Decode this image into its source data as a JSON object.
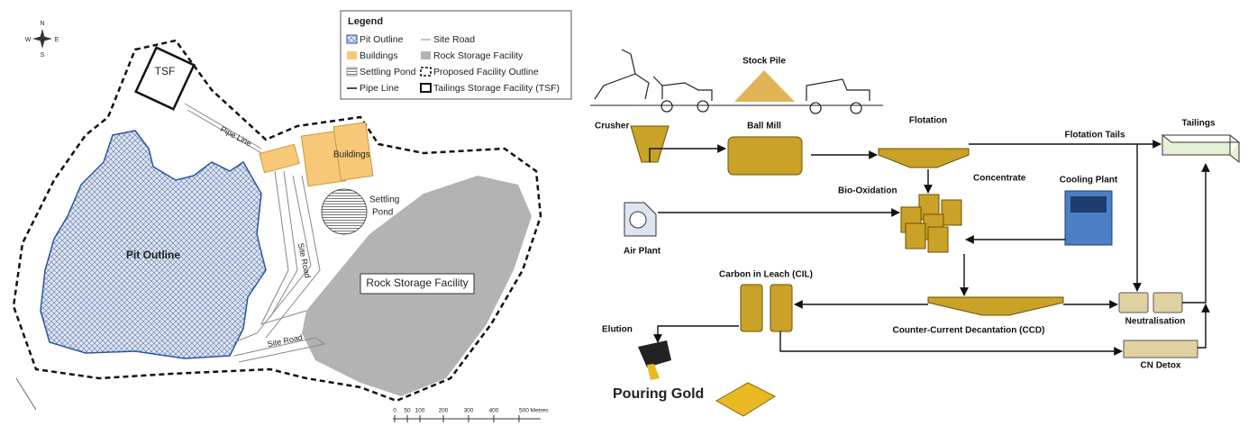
{
  "map": {
    "compass": {
      "north": "N",
      "west": "W",
      "east": "E",
      "south": "S"
    },
    "legend": {
      "title": "Legend",
      "items": [
        "Pit Outline",
        "Site Road",
        "Buildings",
        "Rock Storage Facility",
        "Settling Pond",
        "Proposed Facility Outline",
        "Pipe Line",
        "Tailings Storage Facility (TSF)"
      ]
    },
    "labels": {
      "tsf": "TSF",
      "pipe_line": "Pipe Line",
      "buildings": "Buildings",
      "settling_pond": [
        "Settling",
        "Pond"
      ],
      "pit_outline": "Pit Outline",
      "site_road_vertical": "Site Road",
      "rock_storage": "Rock Storage Facility",
      "site_road": "Site Road"
    },
    "scale": [
      "0",
      "50",
      "100",
      "200",
      "300",
      "400",
      "500 Metres"
    ]
  },
  "flow": {
    "nodes": {
      "stock_pile": "Stock Pile",
      "crusher": "Crusher",
      "ball_mill": "Ball Mill",
      "flotation": "Flotation",
      "flotation_tails": "Flotation Tails",
      "tailings": "Tailings",
      "concentrate": "Concentrate",
      "bio_oxidation": "Bio-Oxidation",
      "cooling_plant": "Cooling Plant",
      "air_plant": "Air Plant",
      "cil": "Carbon in Leach (CIL)",
      "elution": "Elution",
      "ccd": "Counter-Current Decantation (CCD)",
      "neutralisation": "Neutralisation",
      "cn_detox": "CN Detox",
      "pouring_gold": "Pouring Gold"
    }
  }
}
